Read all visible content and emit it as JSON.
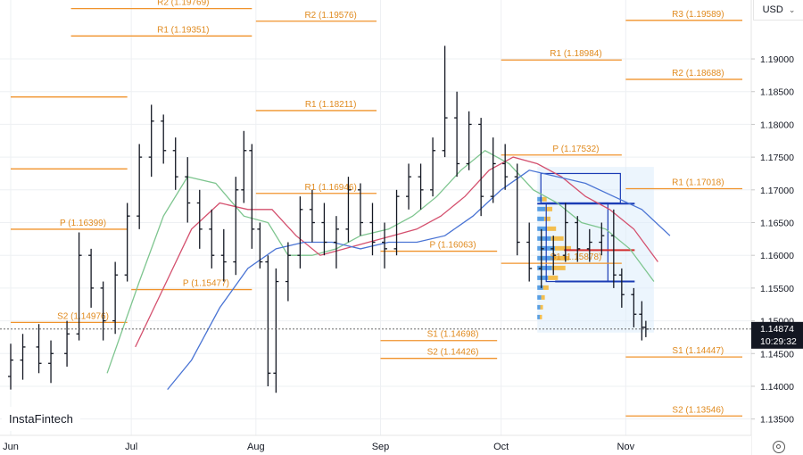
{
  "header": {
    "currency": "USD"
  },
  "brand": {
    "logo_text": "InstaFintech"
  },
  "icons": {
    "settings": "gear-icon",
    "currency_dropdown": "chevron-down-icon"
  },
  "chart_data": {
    "type": "ohlc",
    "instrument": "EUR/USD",
    "y_axis": {
      "ticks": [
        "1.19000",
        "1.18500",
        "1.18000",
        "1.17500",
        "1.17000",
        "1.16500",
        "1.16000",
        "1.15500",
        "1.15000",
        "1.14500",
        "1.14000",
        "1.13500"
      ],
      "range": [
        1.1325,
        1.199
      ]
    },
    "x_axis": {
      "ticks": [
        {
          "date": "2025-06-01",
          "label": "Jun"
        },
        {
          "date": "2025-07-01",
          "label": "Jul"
        },
        {
          "date": "2025-08-01",
          "label": "Aug"
        },
        {
          "date": "2025-09-01",
          "label": "Sep"
        },
        {
          "date": "2025-10-01",
          "label": "Oct"
        },
        {
          "date": "2025-11-01",
          "label": "Nov"
        }
      ],
      "range": [
        "2025-06-01",
        "2025-11-30"
      ]
    },
    "current_price": {
      "value": "1.14874",
      "time": "10:29:32",
      "price": 1.14874
    },
    "colors": {
      "pivot": "#f0932b",
      "pivot_text": "#e08a1e",
      "ma_green": "#7ec58f",
      "ma_red": "#d4506e",
      "ma_blue": "#4a74d4",
      "profile_bg": "#dcecfb",
      "profile_blue": "#3d8fe0",
      "profile_orange": "#f5b430"
    },
    "pivot_levels": [
      {
        "label": "R2 (1.19769)",
        "value": 1.19769,
        "start": "2025-06-16",
        "end": "2025-07-31"
      },
      {
        "label": "R1 (1.19351)",
        "value": 1.19351,
        "start": "2025-06-16",
        "end": "2025-07-31"
      },
      {
        "label": "R2 (1.19576)",
        "value": 1.19576,
        "start": "2025-08-01",
        "end": "2025-08-31"
      },
      {
        "label": "R1 (1.18211)",
        "value": 1.18211,
        "start": "2025-08-01",
        "end": "2025-08-31"
      },
      {
        "label": "R1 (1.16946)",
        "value": 1.16946,
        "start": "2025-08-01",
        "end": "2025-08-31"
      },
      {
        "label": "P (1.15477)",
        "value": 1.15477,
        "start": "2025-07-01",
        "end": "2025-07-31"
      },
      {
        "label": "P (1.16399)",
        "value": 1.16399,
        "start": "2025-06-01",
        "end": "2025-06-30"
      },
      {
        "label": "P (1.16063)",
        "value": 1.16063,
        "start": "2025-09-01",
        "end": "2025-09-30"
      },
      {
        "label": "S1 (1.14698)",
        "value": 1.14698,
        "start": "2025-09-01",
        "end": "2025-09-30"
      },
      {
        "label": "S2 (1.14426)",
        "value": 1.14426,
        "start": "2025-09-01",
        "end": "2025-09-30"
      },
      {
        "label": "R3 (1.19589)",
        "value": 1.19589,
        "start": "2025-11-01",
        "end": "2025-11-30"
      },
      {
        "label": "R1 (1.18984)",
        "value": 1.18984,
        "start": "2025-10-01",
        "end": "2025-10-31"
      },
      {
        "label": "R2 (1.18688)",
        "value": 1.18688,
        "start": "2025-11-01",
        "end": "2025-11-30"
      },
      {
        "label": "P (1.17532)",
        "value": 1.17532,
        "start": "2025-10-01",
        "end": "2025-10-31"
      },
      {
        "label": "R1 (1.17018)",
        "value": 1.17018,
        "start": "2025-11-01",
        "end": "2025-11-30"
      },
      {
        "label": "S1 (1.15878)",
        "value": 1.15878,
        "start": "2025-10-01",
        "end": "2025-10-31"
      },
      {
        "label": "S1 (1.14447)",
        "value": 1.14447,
        "start": "2025-11-01",
        "end": "2025-11-30"
      },
      {
        "label": "S2 (1.13546)",
        "value": 1.13546,
        "start": "2025-11-01",
        "end": "2025-11-30"
      },
      {
        "label": "S2 (1.14976)",
        "value": 1.14976,
        "start": "2025-06-01",
        "end": "2025-06-30"
      },
      {
        "label": "",
        "value": 1.18419,
        "start": "2025-06-01",
        "end": "2025-06-30"
      },
      {
        "label": "",
        "value": 1.1732,
        "start": "2025-06-01",
        "end": "2025-06-30"
      }
    ],
    "ohlc": [
      {
        "date": "2025-06-01",
        "o": 1.1415,
        "h": 1.1465,
        "l": 1.1395,
        "c": 1.144
      },
      {
        "date": "2025-06-04",
        "o": 1.144,
        "h": 1.148,
        "l": 1.141,
        "c": 1.146
      },
      {
        "date": "2025-06-08",
        "o": 1.146,
        "h": 1.1495,
        "l": 1.142,
        "c": 1.1435
      },
      {
        "date": "2025-06-11",
        "o": 1.1435,
        "h": 1.147,
        "l": 1.1405,
        "c": 1.145
      },
      {
        "date": "2025-06-15",
        "o": 1.145,
        "h": 1.15,
        "l": 1.143,
        "c": 1.148
      },
      {
        "date": "2025-06-18",
        "o": 1.148,
        "h": 1.1635,
        "l": 1.147,
        "c": 1.16
      },
      {
        "date": "2025-06-21",
        "o": 1.16,
        "h": 1.161,
        "l": 1.152,
        "c": 1.155
      },
      {
        "date": "2025-06-24",
        "o": 1.155,
        "h": 1.156,
        "l": 1.147,
        "c": 1.15
      },
      {
        "date": "2025-06-27",
        "o": 1.15,
        "h": 1.159,
        "l": 1.148,
        "c": 1.157
      },
      {
        "date": "2025-06-30",
        "o": 1.157,
        "h": 1.168,
        "l": 1.156,
        "c": 1.166
      },
      {
        "date": "2025-07-03",
        "o": 1.166,
        "h": 1.177,
        "l": 1.164,
        "c": 1.175
      },
      {
        "date": "2025-07-06",
        "o": 1.175,
        "h": 1.183,
        "l": 1.172,
        "c": 1.1805
      },
      {
        "date": "2025-07-09",
        "o": 1.1805,
        "h": 1.1815,
        "l": 1.174,
        "c": 1.176
      },
      {
        "date": "2025-07-12",
        "o": 1.176,
        "h": 1.178,
        "l": 1.17,
        "c": 1.172
      },
      {
        "date": "2025-07-15",
        "o": 1.172,
        "h": 1.175,
        "l": 1.165,
        "c": 1.168
      },
      {
        "date": "2025-07-18",
        "o": 1.168,
        "h": 1.17,
        "l": 1.161,
        "c": 1.164
      },
      {
        "date": "2025-07-21",
        "o": 1.164,
        "h": 1.167,
        "l": 1.158,
        "c": 1.16
      },
      {
        "date": "2025-07-24",
        "o": 1.16,
        "h": 1.164,
        "l": 1.156,
        "c": 1.159
      },
      {
        "date": "2025-07-27",
        "o": 1.159,
        "h": 1.172,
        "l": 1.157,
        "c": 1.17
      },
      {
        "date": "2025-07-29",
        "o": 1.17,
        "h": 1.179,
        "l": 1.168,
        "c": 1.176
      },
      {
        "date": "2025-07-31",
        "o": 1.176,
        "h": 1.177,
        "l": 1.161,
        "c": 1.164
      },
      {
        "date": "2025-08-02",
        "o": 1.164,
        "h": 1.165,
        "l": 1.158,
        "c": 1.159
      },
      {
        "date": "2025-08-04",
        "o": 1.159,
        "h": 1.16,
        "l": 1.14,
        "c": 1.142
      },
      {
        "date": "2025-08-06",
        "o": 1.142,
        "h": 1.158,
        "l": 1.139,
        "c": 1.156
      },
      {
        "date": "2025-08-09",
        "o": 1.156,
        "h": 1.162,
        "l": 1.153,
        "c": 1.16
      },
      {
        "date": "2025-08-12",
        "o": 1.16,
        "h": 1.169,
        "l": 1.158,
        "c": 1.167
      },
      {
        "date": "2025-08-15",
        "o": 1.167,
        "h": 1.17,
        "l": 1.162,
        "c": 1.165
      },
      {
        "date": "2025-08-18",
        "o": 1.165,
        "h": 1.168,
        "l": 1.16,
        "c": 1.162
      },
      {
        "date": "2025-08-21",
        "o": 1.162,
        "h": 1.166,
        "l": 1.158,
        "c": 1.164
      },
      {
        "date": "2025-08-24",
        "o": 1.164,
        "h": 1.172,
        "l": 1.162,
        "c": 1.17
      },
      {
        "date": "2025-08-27",
        "o": 1.17,
        "h": 1.171,
        "l": 1.163,
        "c": 1.165
      },
      {
        "date": "2025-08-30",
        "o": 1.165,
        "h": 1.168,
        "l": 1.16,
        "c": 1.162
      },
      {
        "date": "2025-09-02",
        "o": 1.162,
        "h": 1.165,
        "l": 1.158,
        "c": 1.161
      },
      {
        "date": "2025-09-05",
        "o": 1.161,
        "h": 1.17,
        "l": 1.16,
        "c": 1.169
      },
      {
        "date": "2025-09-08",
        "o": 1.169,
        "h": 1.174,
        "l": 1.167,
        "c": 1.172
      },
      {
        "date": "2025-09-11",
        "o": 1.172,
        "h": 1.174,
        "l": 1.167,
        "c": 1.17
      },
      {
        "date": "2025-09-14",
        "o": 1.17,
        "h": 1.178,
        "l": 1.169,
        "c": 1.176
      },
      {
        "date": "2025-09-17",
        "o": 1.176,
        "h": 1.192,
        "l": 1.175,
        "c": 1.181
      },
      {
        "date": "2025-09-20",
        "o": 1.181,
        "h": 1.185,
        "l": 1.172,
        "c": 1.174
      },
      {
        "date": "2025-09-23",
        "o": 1.174,
        "h": 1.182,
        "l": 1.173,
        "c": 1.18
      },
      {
        "date": "2025-09-26",
        "o": 1.18,
        "h": 1.181,
        "l": 1.166,
        "c": 1.169
      },
      {
        "date": "2025-09-29",
        "o": 1.169,
        "h": 1.178,
        "l": 1.168,
        "c": 1.174
      },
      {
        "date": "2025-10-02",
        "o": 1.174,
        "h": 1.177,
        "l": 1.17,
        "c": 1.172
      },
      {
        "date": "2025-10-05",
        "o": 1.172,
        "h": 1.174,
        "l": 1.16,
        "c": 1.162
      },
      {
        "date": "2025-10-08",
        "o": 1.162,
        "h": 1.165,
        "l": 1.156,
        "c": 1.158
      },
      {
        "date": "2025-10-11",
        "o": 1.158,
        "h": 1.164,
        "l": 1.155,
        "c": 1.161
      },
      {
        "date": "2025-10-14",
        "o": 1.161,
        "h": 1.163,
        "l": 1.157,
        "c": 1.16
      },
      {
        "date": "2025-10-17",
        "o": 1.16,
        "h": 1.168,
        "l": 1.159,
        "c": 1.165
      },
      {
        "date": "2025-10-20",
        "o": 1.165,
        "h": 1.166,
        "l": 1.159,
        "c": 1.161
      },
      {
        "date": "2025-10-23",
        "o": 1.161,
        "h": 1.164,
        "l": 1.159,
        "c": 1.162
      },
      {
        "date": "2025-10-26",
        "o": 1.162,
        "h": 1.165,
        "l": 1.16,
        "c": 1.163
      },
      {
        "date": "2025-10-29",
        "o": 1.163,
        "h": 1.167,
        "l": 1.155,
        "c": 1.157
      },
      {
        "date": "2025-10-31",
        "o": 1.157,
        "h": 1.158,
        "l": 1.152,
        "c": 1.154
      },
      {
        "date": "2025-11-03",
        "o": 1.154,
        "h": 1.155,
        "l": 1.149,
        "c": 1.151
      },
      {
        "date": "2025-11-05",
        "o": 1.151,
        "h": 1.153,
        "l": 1.147,
        "c": 1.149
      },
      {
        "date": "2025-11-06",
        "o": 1.149,
        "h": 1.15,
        "l": 1.1475,
        "c": 1.14874
      }
    ],
    "moving_averages": [
      {
        "color": "green",
        "points": [
          [
            "2025-06-25",
            1.142
          ],
          [
            "2025-07-03",
            1.156
          ],
          [
            "2025-07-09",
            1.166
          ],
          [
            "2025-07-15",
            1.172
          ],
          [
            "2025-07-22",
            1.171
          ],
          [
            "2025-07-29",
            1.166
          ],
          [
            "2025-08-04",
            1.165
          ],
          [
            "2025-08-09",
            1.16
          ],
          [
            "2025-08-15",
            1.16
          ],
          [
            "2025-08-21",
            1.161
          ],
          [
            "2025-08-27",
            1.163
          ],
          [
            "2025-09-03",
            1.164
          ],
          [
            "2025-09-09",
            1.166
          ],
          [
            "2025-09-15",
            1.169
          ],
          [
            "2025-09-21",
            1.173
          ],
          [
            "2025-09-27",
            1.176
          ],
          [
            "2025-10-03",
            1.174
          ],
          [
            "2025-10-09",
            1.17
          ],
          [
            "2025-10-15",
            1.168
          ],
          [
            "2025-10-21",
            1.165
          ],
          [
            "2025-10-27",
            1.164
          ],
          [
            "2025-11-02",
            1.161
          ],
          [
            "2025-11-08",
            1.156
          ]
        ]
      },
      {
        "color": "red",
        "points": [
          [
            "2025-07-02",
            1.146
          ],
          [
            "2025-07-09",
            1.155
          ],
          [
            "2025-07-16",
            1.164
          ],
          [
            "2025-07-23",
            1.168
          ],
          [
            "2025-07-30",
            1.167
          ],
          [
            "2025-08-05",
            1.167
          ],
          [
            "2025-08-11",
            1.163
          ],
          [
            "2025-08-17",
            1.16
          ],
          [
            "2025-08-23",
            1.161
          ],
          [
            "2025-08-29",
            1.162
          ],
          [
            "2025-09-04",
            1.163
          ],
          [
            "2025-09-10",
            1.164
          ],
          [
            "2025-09-16",
            1.166
          ],
          [
            "2025-09-22",
            1.169
          ],
          [
            "2025-09-28",
            1.173
          ],
          [
            "2025-10-04",
            1.175
          ],
          [
            "2025-10-10",
            1.174
          ],
          [
            "2025-10-16",
            1.172
          ],
          [
            "2025-10-22",
            1.169
          ],
          [
            "2025-10-28",
            1.167
          ],
          [
            "2025-11-03",
            1.164
          ],
          [
            "2025-11-09",
            1.159
          ]
        ]
      },
      {
        "color": "blue",
        "points": [
          [
            "2025-07-10",
            1.1395
          ],
          [
            "2025-07-16",
            1.144
          ],
          [
            "2025-07-23",
            1.152
          ],
          [
            "2025-07-30",
            1.158
          ],
          [
            "2025-08-06",
            1.161
          ],
          [
            "2025-08-13",
            1.162
          ],
          [
            "2025-08-20",
            1.162
          ],
          [
            "2025-08-27",
            1.161
          ],
          [
            "2025-09-03",
            1.162
          ],
          [
            "2025-09-10",
            1.162
          ],
          [
            "2025-09-17",
            1.163
          ],
          [
            "2025-09-24",
            1.166
          ],
          [
            "2025-10-01",
            1.17
          ],
          [
            "2025-10-08",
            1.173
          ],
          [
            "2025-10-15",
            1.172
          ],
          [
            "2025-10-22",
            1.171
          ],
          [
            "2025-10-29",
            1.169
          ],
          [
            "2025-11-05",
            1.167
          ],
          [
            "2025-11-12",
            1.163
          ]
        ]
      }
    ]
  }
}
